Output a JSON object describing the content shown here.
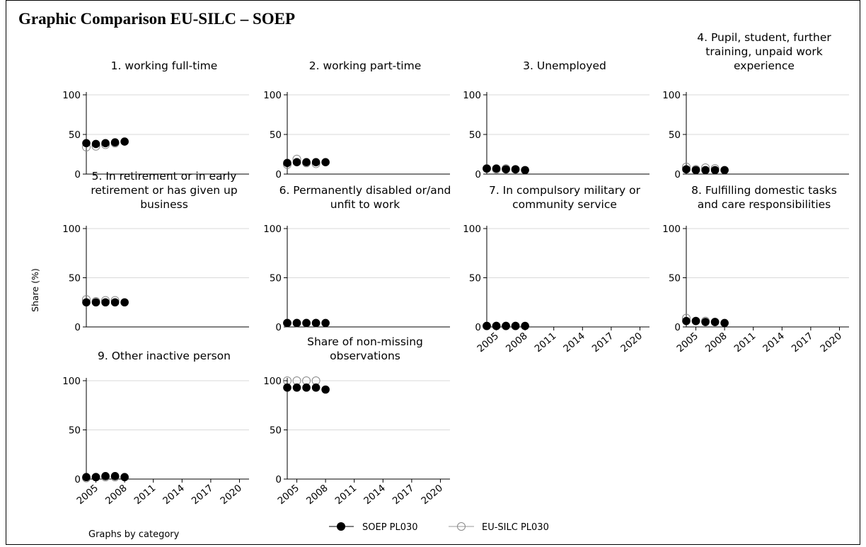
{
  "page": {
    "title": "Graphic Comparison EU-SILC – SOEP",
    "ylabel": "Share (%)",
    "note": "Graphs by category"
  },
  "legend": {
    "position": "bottom-center",
    "items": [
      {
        "label": "SOEP PL030",
        "marker": "filled-circle",
        "color": "#000000"
      },
      {
        "label": "EU-SILC PL030",
        "marker": "hollow-circle",
        "color": "#888888"
      }
    ]
  },
  "chart_data": {
    "type": "scatter",
    "x_ticks": [
      "2005",
      "2008",
      "2011",
      "2014",
      "2017",
      "2020"
    ],
    "y_ticks": [
      "0",
      "50",
      "100"
    ],
    "xlim": [
      2004,
      2021
    ],
    "ylim": [
      0,
      100
    ],
    "grid": "horizontal",
    "years": [
      2004,
      2005,
      2006,
      2007,
      2008
    ],
    "panels": [
      {
        "title": [
          "1. working full-time"
        ],
        "soep": [
          39,
          38,
          39,
          40,
          41
        ],
        "eusilc": [
          34,
          35,
          37,
          39,
          null
        ],
        "show_x": false
      },
      {
        "title": [
          "2. working part-time"
        ],
        "soep": [
          14,
          15,
          15,
          15,
          15
        ],
        "eusilc": [
          12,
          19,
          14,
          13,
          null
        ],
        "show_x": false
      },
      {
        "title": [
          "3. Unemployed"
        ],
        "soep": [
          7,
          7,
          6,
          6,
          5
        ],
        "eusilc": [
          7,
          6,
          7,
          6,
          null
        ],
        "show_x": false
      },
      {
        "title": [
          "4. Pupil, student, further",
          "training, unpaid work",
          "experience"
        ],
        "soep": [
          6,
          5,
          5,
          5,
          5
        ],
        "eusilc": [
          9,
          6,
          8,
          7,
          null
        ],
        "show_x": false
      },
      {
        "title": [
          "5. In retirement or in early",
          "retirement or has given up",
          "business"
        ],
        "soep": [
          25,
          25,
          25,
          25,
          25
        ],
        "eusilc": [
          28,
          26,
          27,
          27,
          null
        ],
        "show_x": false
      },
      {
        "title": [
          "6. Permanently disabled or/and",
          "unfit to work"
        ],
        "soep": [
          4,
          4,
          4,
          4,
          4
        ],
        "eusilc": [
          4,
          4,
          4,
          4,
          null
        ],
        "show_x": false
      },
      {
        "title": [
          "7. In compulsory military or",
          "community service"
        ],
        "soep": [
          1,
          1,
          1,
          1,
          1
        ],
        "eusilc": [
          1,
          1,
          1,
          1,
          null
        ],
        "show_x": true
      },
      {
        "title": [
          "8. Fulfilling domestic tasks",
          "and care responsibilities"
        ],
        "soep": [
          6,
          6,
          5,
          5,
          4
        ],
        "eusilc": [
          9,
          6,
          6,
          5,
          null
        ],
        "show_x": true
      },
      {
        "title": [
          "9. Other inactive person"
        ],
        "soep": [
          2,
          2,
          3,
          3,
          2
        ],
        "eusilc": [
          1,
          2,
          2,
          2,
          null
        ],
        "show_x": true
      },
      {
        "title": [
          "Share of non-missing",
          "observations"
        ],
        "soep": [
          93,
          93,
          93,
          93,
          91
        ],
        "eusilc": [
          100,
          100,
          100,
          100,
          null
        ],
        "show_x": true
      }
    ]
  }
}
